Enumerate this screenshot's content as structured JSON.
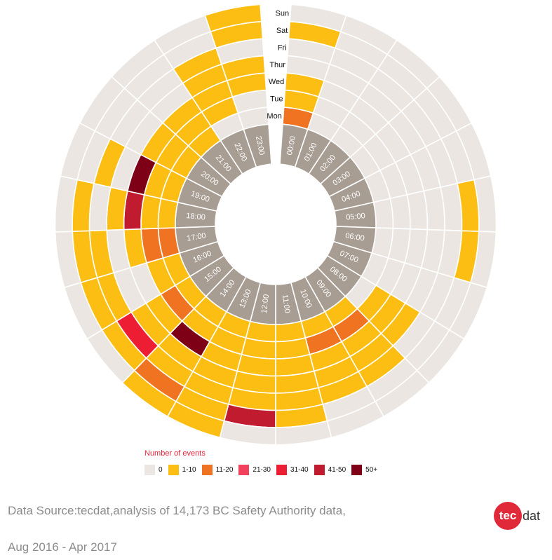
{
  "chart_data": {
    "type": "radial_heatmap",
    "title": "",
    "days": [
      "Mon",
      "Tue",
      "Wed",
      "Thur",
      "Fri",
      "Sat",
      "Sun"
    ],
    "hours": [
      "00:00",
      "01:00",
      "02:00",
      "03:00",
      "04:00",
      "05:00",
      "06:00",
      "07:00",
      "08:00",
      "09:00",
      "10:00",
      "11:00",
      "12:00",
      "13:00",
      "14:00",
      "15:00",
      "16:00",
      "17:00",
      "18:00",
      "19:00",
      "20:00",
      "21:00",
      "22:00",
      "23:00"
    ],
    "value_categories": [
      "0",
      "1-10",
      "11-20",
      "21-30",
      "31-40",
      "41-50",
      "50+"
    ],
    "values_by_day": {
      "Mon": [
        2,
        0,
        0,
        0,
        0,
        0,
        0,
        0,
        0,
        1,
        1,
        1,
        1,
        1,
        1,
        1,
        1,
        2,
        1,
        1,
        1,
        1,
        0,
        0
      ],
      "Tue": [
        1,
        0,
        0,
        0,
        0,
        0,
        0,
        0,
        1,
        2,
        2,
        1,
        1,
        1,
        1,
        2,
        1,
        2,
        1,
        1,
        1,
        1,
        1,
        0
      ],
      "Wed": [
        1,
        0,
        0,
        0,
        0,
        0,
        0,
        0,
        1,
        1,
        1,
        1,
        1,
        1,
        6,
        1,
        0,
        1,
        5,
        6,
        1,
        1,
        1,
        1
      ],
      "Thur": [
        0,
        0,
        0,
        0,
        0,
        0,
        0,
        0,
        1,
        1,
        1,
        1,
        1,
        1,
        1,
        1,
        0,
        0,
        1,
        0,
        0,
        0,
        1,
        1
      ],
      "Fri": [
        0,
        0,
        0,
        0,
        0,
        0,
        0,
        0,
        0,
        1,
        1,
        1,
        1,
        1,
        1,
        4,
        1,
        1,
        0,
        1,
        0,
        0,
        1,
        0
      ],
      "Sat": [
        1,
        0,
        0,
        0,
        0,
        1,
        1,
        0,
        0,
        0,
        0,
        1,
        5,
        1,
        2,
        1,
        1,
        1,
        1,
        0,
        0,
        0,
        0,
        1
      ],
      "Sun": [
        0,
        0,
        0,
        0,
        0,
        0,
        0,
        0,
        0,
        0,
        0,
        0,
        0,
        1,
        1,
        0,
        0,
        0,
        0,
        0,
        0,
        0,
        0,
        1
      ]
    }
  },
  "colors": {
    "0": "#ebe6e2",
    "1-10": "#fcbe12",
    "11-20": "#f07321",
    "21-30": "#f2415c",
    "31-40": "#ed1d34",
    "41-50": "#c11b2f",
    "50+": "#7e0016",
    "hour_ring": "#a89d93"
  },
  "legend": {
    "title": "Number of events",
    "items": [
      "0",
      "1-10",
      "11-20",
      "21-30",
      "31-40",
      "41-50",
      "50+"
    ]
  },
  "source": {
    "line1": "Data Source:tecdat,analysis of 14,173 BC Safety Authority data,",
    "line2": "Aug 2016 - Apr 2017"
  },
  "logo": {
    "part1": "tec",
    "part2": "dat"
  }
}
